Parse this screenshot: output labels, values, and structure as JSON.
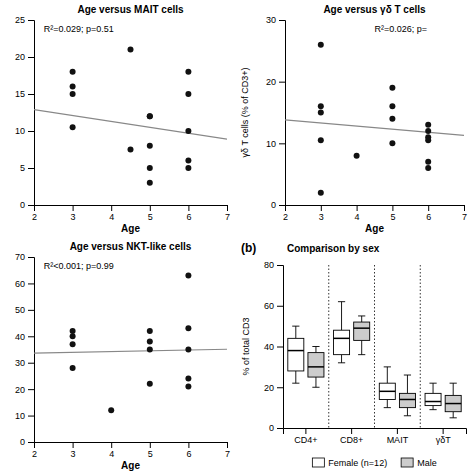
{
  "chart_data": [
    {
      "type": "scatter",
      "title": "Age versus MAIT cells",
      "x_label": "Age",
      "annotation": "R²=0.029; p=0.51",
      "xlim": [
        2,
        7
      ],
      "xticks": [
        2,
        3,
        4,
        5,
        6,
        7
      ],
      "ylim": [
        0,
        25
      ],
      "yticks": [
        0,
        5,
        10,
        15,
        20,
        25
      ],
      "series": [
        {
          "type": "scatter",
          "color": "#111111",
          "x": [
            3,
            3,
            3,
            3,
            4.5,
            4.5,
            5,
            5,
            5,
            5,
            5,
            6,
            6,
            6,
            6,
            6
          ],
          "values": [
            18,
            16,
            15,
            10.5,
            7.5,
            21,
            12,
            12,
            5,
            8,
            3,
            18,
            15,
            10,
            6,
            5
          ]
        },
        {
          "type": "line",
          "color": "#888888",
          "x": [
            2,
            7
          ],
          "values": [
            12.9,
            8.9
          ]
        }
      ]
    },
    {
      "type": "scatter",
      "title": "Age versus γδ T cells",
      "x_label": "Age",
      "y_label": "γδ T cells (% of CD3+)",
      "annotation": "R²=0.026; p=",
      "xlim": [
        2,
        7
      ],
      "xticks": [
        2,
        3,
        4,
        5,
        6,
        7
      ],
      "ylim": [
        0,
        30
      ],
      "yticks": [
        0,
        10,
        20,
        30
      ],
      "series": [
        {
          "type": "scatter",
          "color": "#111111",
          "x": [
            3,
            3,
            3,
            3,
            3,
            4,
            5,
            5,
            5,
            5,
            6,
            6,
            6,
            6,
            6,
            6
          ],
          "values": [
            26,
            16,
            15,
            10.5,
            2,
            8,
            16,
            14,
            10,
            19,
            13,
            12,
            11,
            10.5,
            7,
            6
          ]
        },
        {
          "type": "line",
          "color": "#888888",
          "x": [
            2,
            7
          ],
          "values": [
            13.8,
            11.3
          ]
        }
      ]
    },
    {
      "type": "scatter",
      "title": "Age versus NKT-like cells",
      "x_label": "Age",
      "annotation": "R²<0.001; p=0.99",
      "xlim": [
        2,
        7
      ],
      "xticks": [
        2,
        3,
        4,
        5,
        6,
        7
      ],
      "ylim": [
        0,
        70
      ],
      "yticks": [
        0,
        10,
        20,
        30,
        40,
        50,
        60,
        70
      ],
      "series": [
        {
          "type": "scatter",
          "color": "#111111",
          "x": [
            3,
            3,
            3,
            3,
            4,
            5,
            5,
            5,
            5,
            6,
            6,
            6,
            6,
            6
          ],
          "values": [
            42,
            40,
            37,
            28,
            12,
            42,
            38,
            35,
            22,
            63,
            43,
            35,
            24,
            21
          ]
        },
        {
          "type": "line",
          "color": "#888888",
          "x": [
            2,
            7
          ],
          "values": [
            33.6,
            35.1
          ]
        }
      ]
    },
    {
      "type": "box",
      "panel_label": "(b)",
      "title": "Comparison by sex",
      "y_label": "% of total CD3",
      "categories": [
        "CD4+",
        "CD8+",
        "MAIT",
        "γδT"
      ],
      "ylim": [
        0,
        80
      ],
      "yticks": [
        0,
        20,
        40,
        60,
        80
      ],
      "legend": "bottom",
      "series": [
        {
          "name": "Female (n=12)",
          "color": "#ffffff",
          "medians": [
            38,
            44,
            18,
            13
          ],
          "q1": [
            28,
            36,
            14,
            11
          ],
          "q3": [
            44,
            48,
            22,
            17
          ],
          "whislo": [
            22,
            32,
            10,
            9
          ],
          "whishi": [
            50,
            62,
            30,
            22
          ]
        },
        {
          "name": "Male",
          "color": "#cccccc",
          "medians": [
            30,
            49,
            14,
            12
          ],
          "q1": [
            25,
            43,
            10,
            8
          ],
          "q3": [
            37,
            52,
            17,
            16
          ],
          "whislo": [
            20,
            36,
            6,
            5
          ],
          "whishi": [
            40,
            55,
            26,
            22
          ]
        }
      ]
    }
  ]
}
